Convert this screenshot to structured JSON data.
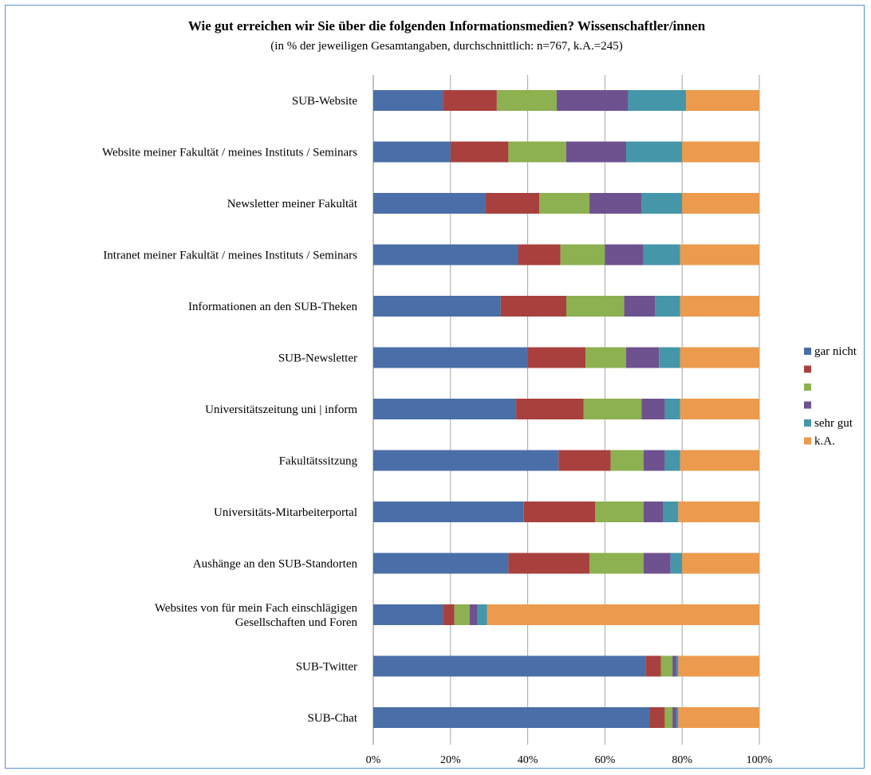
{
  "chart_data": {
    "type": "bar",
    "orientation": "horizontal",
    "stacked": true,
    "title": "Wie gut erreichen wir Sie über die folgenden Informationsmedien? Wissenschaftler/innen",
    "subtitle": "(in % der jeweiligen Gesamtangaben, durchschnittlich: n=767, k.A.=245)",
    "xlim": [
      0,
      100
    ],
    "x_ticks": [
      "0%",
      "20%",
      "40%",
      "60%",
      "80%",
      "100%"
    ],
    "grid": true,
    "legend_position": "right",
    "categories": [
      [
        "SUB-Website"
      ],
      [
        "Website meiner Fakultät / meines Instituts / Seminars"
      ],
      [
        "Newsletter meiner Fakultät"
      ],
      [
        "Intranet meiner Fakultät / meines Instituts / Seminars"
      ],
      [
        "Informationen an den SUB-Theken"
      ],
      [
        "SUB-Newsletter"
      ],
      [
        "Universitätszeitung uni | inform"
      ],
      [
        "Fakultätssitzung"
      ],
      [
        "Universitäts-Mitarbeiterportal"
      ],
      [
        "Aushänge an den SUB-Standorten"
      ],
      [
        "Websites von für mein Fach einschlägigen",
        "Gesellschaften und Foren"
      ],
      [
        "SUB-Twitter"
      ],
      [
        "SUB-Chat"
      ]
    ],
    "series": [
      {
        "name": "gar nicht",
        "color": "#4a6fa8",
        "values": [
          18,
          20,
          29,
          37.5,
          33,
          40,
          37,
          48,
          39,
          35,
          18,
          70.5,
          71.5
        ]
      },
      {
        "color": "#a8413e",
        "values": [
          14,
          15,
          14,
          11,
          17,
          15,
          17.5,
          13.5,
          18.5,
          21,
          3,
          4,
          4
        ]
      },
      {
        "color": "#8db050",
        "values": [
          15.5,
          15,
          13,
          11.5,
          15,
          10.5,
          15,
          8.5,
          12.5,
          14,
          4,
          3,
          2
        ]
      },
      {
        "color": "#6e528f",
        "values": [
          18.5,
          15.5,
          13.5,
          10,
          8,
          8.5,
          6,
          5.5,
          5,
          7,
          2,
          1,
          1
        ]
      },
      {
        "color": "#4596a8",
        "values": [
          15,
          14.5,
          10.5,
          9.5,
          6.5,
          5.5,
          4,
          4,
          4,
          3,
          2.5,
          0.5,
          0.5
        ]
      },
      {
        "name": "k.A.",
        "color": "#ec9a4d",
        "values": [
          19,
          20,
          20,
          20.5,
          20.5,
          20.5,
          20.5,
          20.5,
          21,
          20,
          70.5,
          21,
          21
        ]
      }
    ],
    "legend": [
      "gar nicht",
      "",
      "",
      "",
      "sehr gut",
      "k.A."
    ]
  }
}
